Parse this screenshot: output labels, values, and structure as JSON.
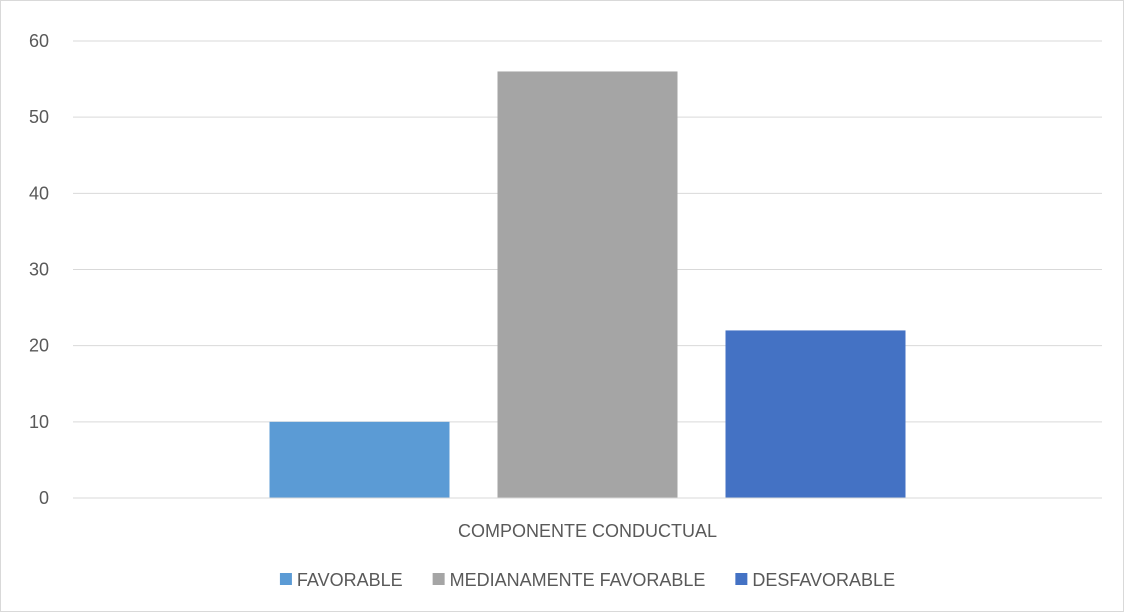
{
  "chart_data": {
    "type": "bar",
    "categories": [
      "COMPONENTE CONDUCTUAL"
    ],
    "series": [
      {
        "name": "FAVORABLE",
        "values": [
          10
        ],
        "color": "#5b9bd5"
      },
      {
        "name": "MEDIANAMENTE FAVORABLE",
        "values": [
          56
        ],
        "color": "#a5a5a5"
      },
      {
        "name": "DESFAVORABLE",
        "values": [
          22
        ],
        "color": "#4472c4"
      }
    ],
    "title": "",
    "xlabel": "",
    "ylabel": "",
    "ylim": [
      0,
      60
    ],
    "yticks": [
      "0",
      "10",
      "20",
      "30",
      "40",
      "50",
      "60"
    ],
    "grid": true,
    "legend_position": "bottom",
    "gridline_color": "#d9d9d9",
    "text_color": "#595959"
  }
}
